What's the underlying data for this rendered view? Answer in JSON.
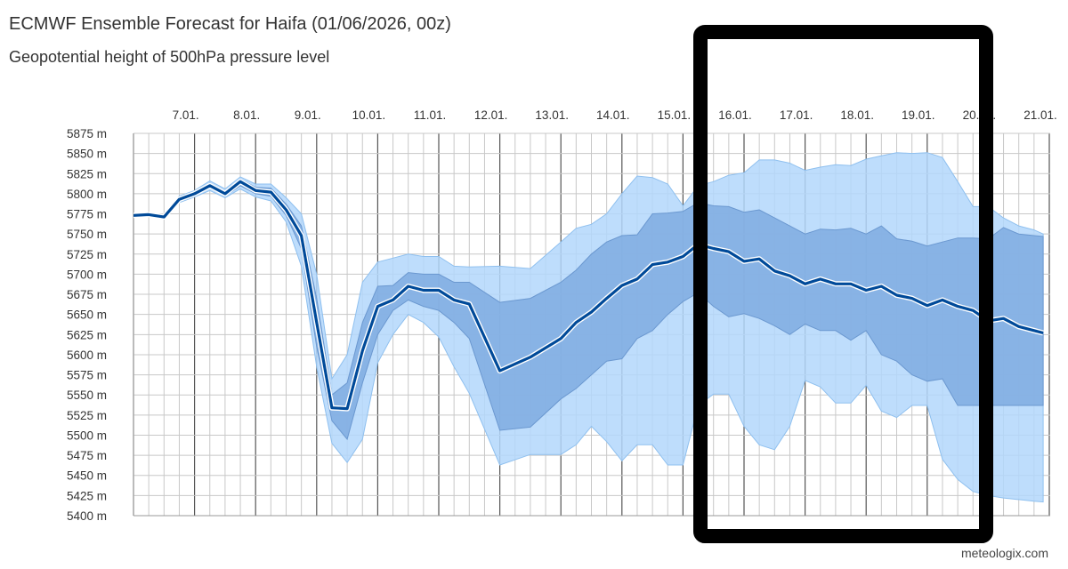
{
  "title": "ECMWF Ensemble Forecast for Haifa (01/06/2026, 00z)",
  "subtitle": "Geopotential height of 500hPa pressure level",
  "credit": "meteologix.com",
  "colors": {
    "outer_band": "#b3d7fb",
    "outer_edge": "#8fc0ef",
    "inner_band": "#7fabe0",
    "inner_edge": "#6b98d0",
    "median": "#004a99",
    "grid_major": "#555555",
    "grid_minor": "#c8c8c8",
    "highlight_box": "#000000"
  },
  "chart_data": {
    "type": "area",
    "ylim": [
      5400,
      5875
    ],
    "y_tick_step": 25,
    "y_tick_suffix": " m",
    "x_days_range": [
      6.0,
      20.9
    ],
    "x_tick_labels": [
      "7.01.",
      "8.01.",
      "9.01.",
      "10.01.",
      "11.01.",
      "12.01.",
      "13.01.",
      "14.01.",
      "15.01.",
      "16.01.",
      "17.01.",
      "18.01.",
      "19.01.",
      "20.01.",
      "21.01."
    ],
    "x_tick_days": [
      7,
      8,
      9,
      10,
      11,
      12,
      13,
      14,
      15,
      16,
      17,
      18,
      19,
      20,
      21
    ],
    "minor_grid_hours": 6,
    "x_days": [
      6.0,
      6.25,
      6.5,
      6.75,
      7.0,
      7.25,
      7.5,
      7.75,
      8.0,
      8.25,
      8.5,
      8.75,
      9.0,
      9.25,
      9.5,
      9.75,
      10.0,
      10.25,
      10.5,
      10.75,
      11.0,
      11.25,
      11.5,
      12.0,
      12.5,
      13.0,
      13.25,
      13.5,
      13.75,
      14.0,
      14.25,
      14.5,
      14.75,
      15.0,
      15.25,
      15.5,
      15.75,
      16.0,
      16.25,
      16.5,
      16.75,
      17.0,
      17.25,
      17.5,
      17.75,
      18.0,
      18.25,
      18.5,
      18.75,
      19.0,
      19.25,
      19.5,
      19.75,
      20.0,
      20.25,
      20.5,
      20.75,
      20.9
    ],
    "series": [
      {
        "name": "",
        "role": "median",
        "values": [
          5773,
          5774,
          5771,
          5793,
          5800,
          5810,
          5800,
          5815,
          5804,
          5802,
          5780,
          5748,
          5640,
          5534,
          5533,
          5605,
          5660,
          5668,
          5685,
          5680,
          5680,
          5668,
          5663,
          5580,
          5597,
          5620,
          5640,
          5653,
          5670,
          5686,
          5694,
          5712,
          5715,
          5722,
          5737,
          5732,
          5728,
          5716,
          5719,
          5704,
          5698,
          5688,
          5694,
          5688,
          5688,
          5680,
          5685,
          5674,
          5670,
          5661,
          5668,
          5660,
          5655,
          5642,
          5645,
          5635,
          5630,
          5627
        ]
      },
      {
        "name": "",
        "role": "p25",
        "values": [
          5772,
          5773,
          5770,
          5791,
          5798,
          5807,
          5797,
          5810,
          5800,
          5797,
          5773,
          5732,
          5610,
          5518,
          5495,
          5565,
          5625,
          5655,
          5668,
          5660,
          5655,
          5640,
          5620,
          5506,
          5510,
          5545,
          5558,
          5575,
          5592,
          5595,
          5620,
          5630,
          5650,
          5666,
          5677,
          5660,
          5647,
          5651,
          5645,
          5636,
          5625,
          5638,
          5630,
          5630,
          5618,
          5630,
          5600,
          5592,
          5575,
          5567,
          5570,
          5537,
          5537,
          5537,
          5537,
          5537,
          5537,
          5537
        ]
      },
      {
        "name": "",
        "role": "p75",
        "values": [
          5774,
          5775,
          5772,
          5795,
          5802,
          5813,
          5803,
          5818,
          5808,
          5807,
          5787,
          5760,
          5670,
          5550,
          5565,
          5640,
          5685,
          5686,
          5702,
          5700,
          5700,
          5690,
          5690,
          5665,
          5670,
          5690,
          5705,
          5725,
          5740,
          5748,
          5749,
          5775,
          5776,
          5778,
          5789,
          5785,
          5784,
          5777,
          5780,
          5770,
          5760,
          5750,
          5756,
          5755,
          5757,
          5750,
          5760,
          5744,
          5741,
          5735,
          5740,
          5745,
          5745,
          5744,
          5758,
          5750,
          5748,
          5747
        ]
      },
      {
        "name": "",
        "role": "min",
        "values": [
          5771,
          5772,
          5769,
          5789,
          5796,
          5804,
          5795,
          5806,
          5796,
          5791,
          5765,
          5710,
          5585,
          5490,
          5466,
          5495,
          5590,
          5625,
          5650,
          5640,
          5622,
          5585,
          5552,
          5463,
          5476,
          5476,
          5488,
          5511,
          5492,
          5468,
          5488,
          5488,
          5463,
          5463,
          5537,
          5551,
          5551,
          5511,
          5488,
          5482,
          5511,
          5568,
          5560,
          5540,
          5540,
          5562,
          5530,
          5522,
          5537,
          5537,
          5470,
          5445,
          5430,
          5425,
          5422,
          5420,
          5418,
          5417
        ]
      },
      {
        "name": "",
        "role": "max",
        "values": [
          5775,
          5776,
          5773,
          5797,
          5804,
          5816,
          5806,
          5821,
          5812,
          5812,
          5795,
          5775,
          5700,
          5570,
          5600,
          5690,
          5715,
          5720,
          5725,
          5722,
          5722,
          5710,
          5709,
          5710,
          5707,
          5740,
          5757,
          5762,
          5775,
          5800,
          5822,
          5820,
          5812,
          5785,
          5810,
          5815,
          5823,
          5826,
          5842,
          5842,
          5838,
          5829,
          5833,
          5836,
          5835,
          5843,
          5847,
          5851,
          5850,
          5851,
          5845,
          5815,
          5784,
          5784,
          5770,
          5760,
          5755,
          5750
        ]
      }
    ]
  }
}
